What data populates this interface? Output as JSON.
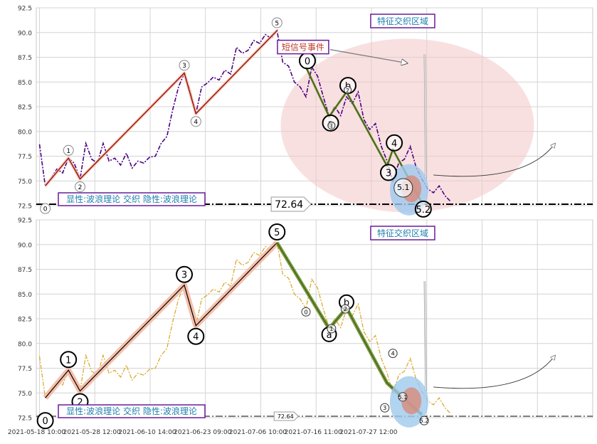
{
  "chart_data": [
    {
      "type": "line",
      "panel": "top",
      "ylim": [
        72.5,
        92.5
      ],
      "y_ticks": [
        72.5,
        75.0,
        77.5,
        80.0,
        82.5,
        85.0,
        87.5,
        90.0,
        92.5
      ],
      "y_tick_labels": [
        "72.5",
        "75.0",
        "77.5",
        "80.0",
        "82.5",
        "85.0",
        "87.5",
        "90.0",
        "92.5"
      ],
      "grid": true,
      "price_series": {
        "color": "#4b0082",
        "style": "dash-dot",
        "x": [
          0,
          1,
          2,
          3,
          4,
          5,
          6,
          7,
          8,
          9,
          10,
          11,
          12,
          13,
          14,
          15,
          16,
          17,
          18,
          19,
          20,
          21,
          22,
          23,
          24,
          25,
          26,
          27,
          28,
          29,
          30,
          31,
          32,
          33,
          34,
          35,
          36,
          37,
          38,
          39,
          40,
          41,
          42,
          43,
          44,
          45,
          46,
          47,
          48,
          49,
          50,
          51,
          52,
          53,
          54,
          55,
          56,
          57,
          58,
          59,
          60,
          61,
          62,
          63,
          64,
          65,
          66,
          67,
          68,
          69,
          70,
          71
        ],
        "y": [
          78.7,
          74.5,
          75.3,
          76.2,
          75.8,
          77.3,
          76.8,
          75.2,
          78.8,
          77.2,
          76.8,
          78.8,
          77.0,
          77.3,
          76.6,
          77.8,
          76.3,
          77.0,
          76.8,
          77.4,
          77.5,
          78.8,
          79.5,
          82.2,
          84.5,
          85.9,
          84.2,
          81.8,
          84.5,
          84.9,
          85.5,
          85.2,
          86.2,
          85.8,
          88.5,
          87.9,
          88.2,
          89.2,
          88.9,
          89.8,
          89.4,
          90.2,
          87.0,
          86.6,
          85.0,
          84.5,
          83.5,
          86.5,
          85.6,
          83.5,
          81.5,
          82.5,
          81.6,
          83.5,
          82.8,
          84.0,
          81.2,
          80.2,
          80.8,
          78.5,
          77.0,
          75.0,
          76.8,
          77.2,
          78.5,
          76.4,
          75.2,
          74.2,
          73.8,
          74.5,
          73.5,
          72.9
        ]
      },
      "wave_path": {
        "color": "#8b0000",
        "halo_color": "#f4b9a3",
        "points": [
          {
            "x": 1,
            "y": 74.5,
            "label": "0"
          },
          {
            "x": 5,
            "y": 77.3,
            "label": "1"
          },
          {
            "x": 7,
            "y": 75.2,
            "label": "2"
          },
          {
            "x": 25,
            "y": 85.9,
            "label": "3"
          },
          {
            "x": 27,
            "y": 81.8,
            "label": "4"
          },
          {
            "x": 41,
            "y": 90.2,
            "label": "5"
          }
        ]
      },
      "correction_path": {
        "color": "#6b8e23",
        "points": [
          {
            "x": 46,
            "y": 86.5,
            "label": "0"
          },
          {
            "x": 50,
            "y": 81.5,
            "label": "a"
          },
          {
            "x": 53,
            "y": 84.0,
            "label": "b"
          },
          {
            "x": 60,
            "y": 76.5,
            "label": "3"
          },
          {
            "x": 61,
            "y": 78.2,
            "label": "4"
          },
          {
            "x": 66,
            "y": 72.8,
            "label": "5.2"
          }
        ]
      },
      "sub_wave_labels": [
        "1",
        "2",
        "5.1"
      ],
      "support_line": {
        "value": 72.64,
        "label": "72.64"
      },
      "annotations": [
        "特征交织区域",
        "短信号事件",
        "显性:波浪理论 交织 隐性:波浪理论"
      ]
    },
    {
      "type": "line",
      "panel": "bottom",
      "ylim": [
        72.5,
        92.5
      ],
      "y_ticks": [
        72.5,
        75.0,
        77.5,
        80.0,
        82.5,
        85.0,
        87.5,
        90.0,
        92.5
      ],
      "y_tick_labels": [
        "72.5",
        "75.0",
        "77.5",
        "80.0",
        "82.5",
        "85.0",
        "87.5",
        "90.0",
        "92.5"
      ],
      "x_tick_labels": [
        "2021-05-18 10:00",
        "2021-05-28 12:00",
        "2021-06-10 14:00",
        "2021-06-23 09:00",
        "2021-07-06 10:00",
        "2021-07-16 11:00",
        "2021-07-27 12:00"
      ],
      "grid": true,
      "price_series": {
        "color": "#daa520",
        "style": "dash-dot"
      },
      "wave_path": {
        "color": "#000000",
        "halo_color": "#f4b9a3",
        "points": [
          {
            "x": 1,
            "y": 74.5,
            "label": "0"
          },
          {
            "x": 5,
            "y": 77.3,
            "label": "1"
          },
          {
            "x": 7,
            "y": 75.2,
            "label": "2"
          },
          {
            "x": 25,
            "y": 85.9,
            "label": "3"
          },
          {
            "x": 27,
            "y": 81.8,
            "label": "4"
          },
          {
            "x": 41,
            "y": 90.2,
            "label": "5"
          }
        ]
      },
      "correction_path": {
        "color": "#6b8e23",
        "points": [
          {
            "x": 41,
            "y": 90.2,
            "label": ""
          },
          {
            "x": 50,
            "y": 81.5,
            "label": "a"
          },
          {
            "x": 53,
            "y": 83.6,
            "label": "b"
          },
          {
            "x": 60,
            "y": 76.0,
            "label": ""
          },
          {
            "x": 66,
            "y": 72.8,
            "label": ""
          }
        ]
      },
      "sub_wave_labels": [
        "0",
        "1",
        "2",
        "3",
        "4",
        "5.1",
        "5.2"
      ],
      "support_line": {
        "value": 72.64,
        "label": "72.64"
      },
      "annotations": [
        "特征交织区域",
        "显性:波浪理论 交织 隐性:波浪理论"
      ]
    }
  ]
}
